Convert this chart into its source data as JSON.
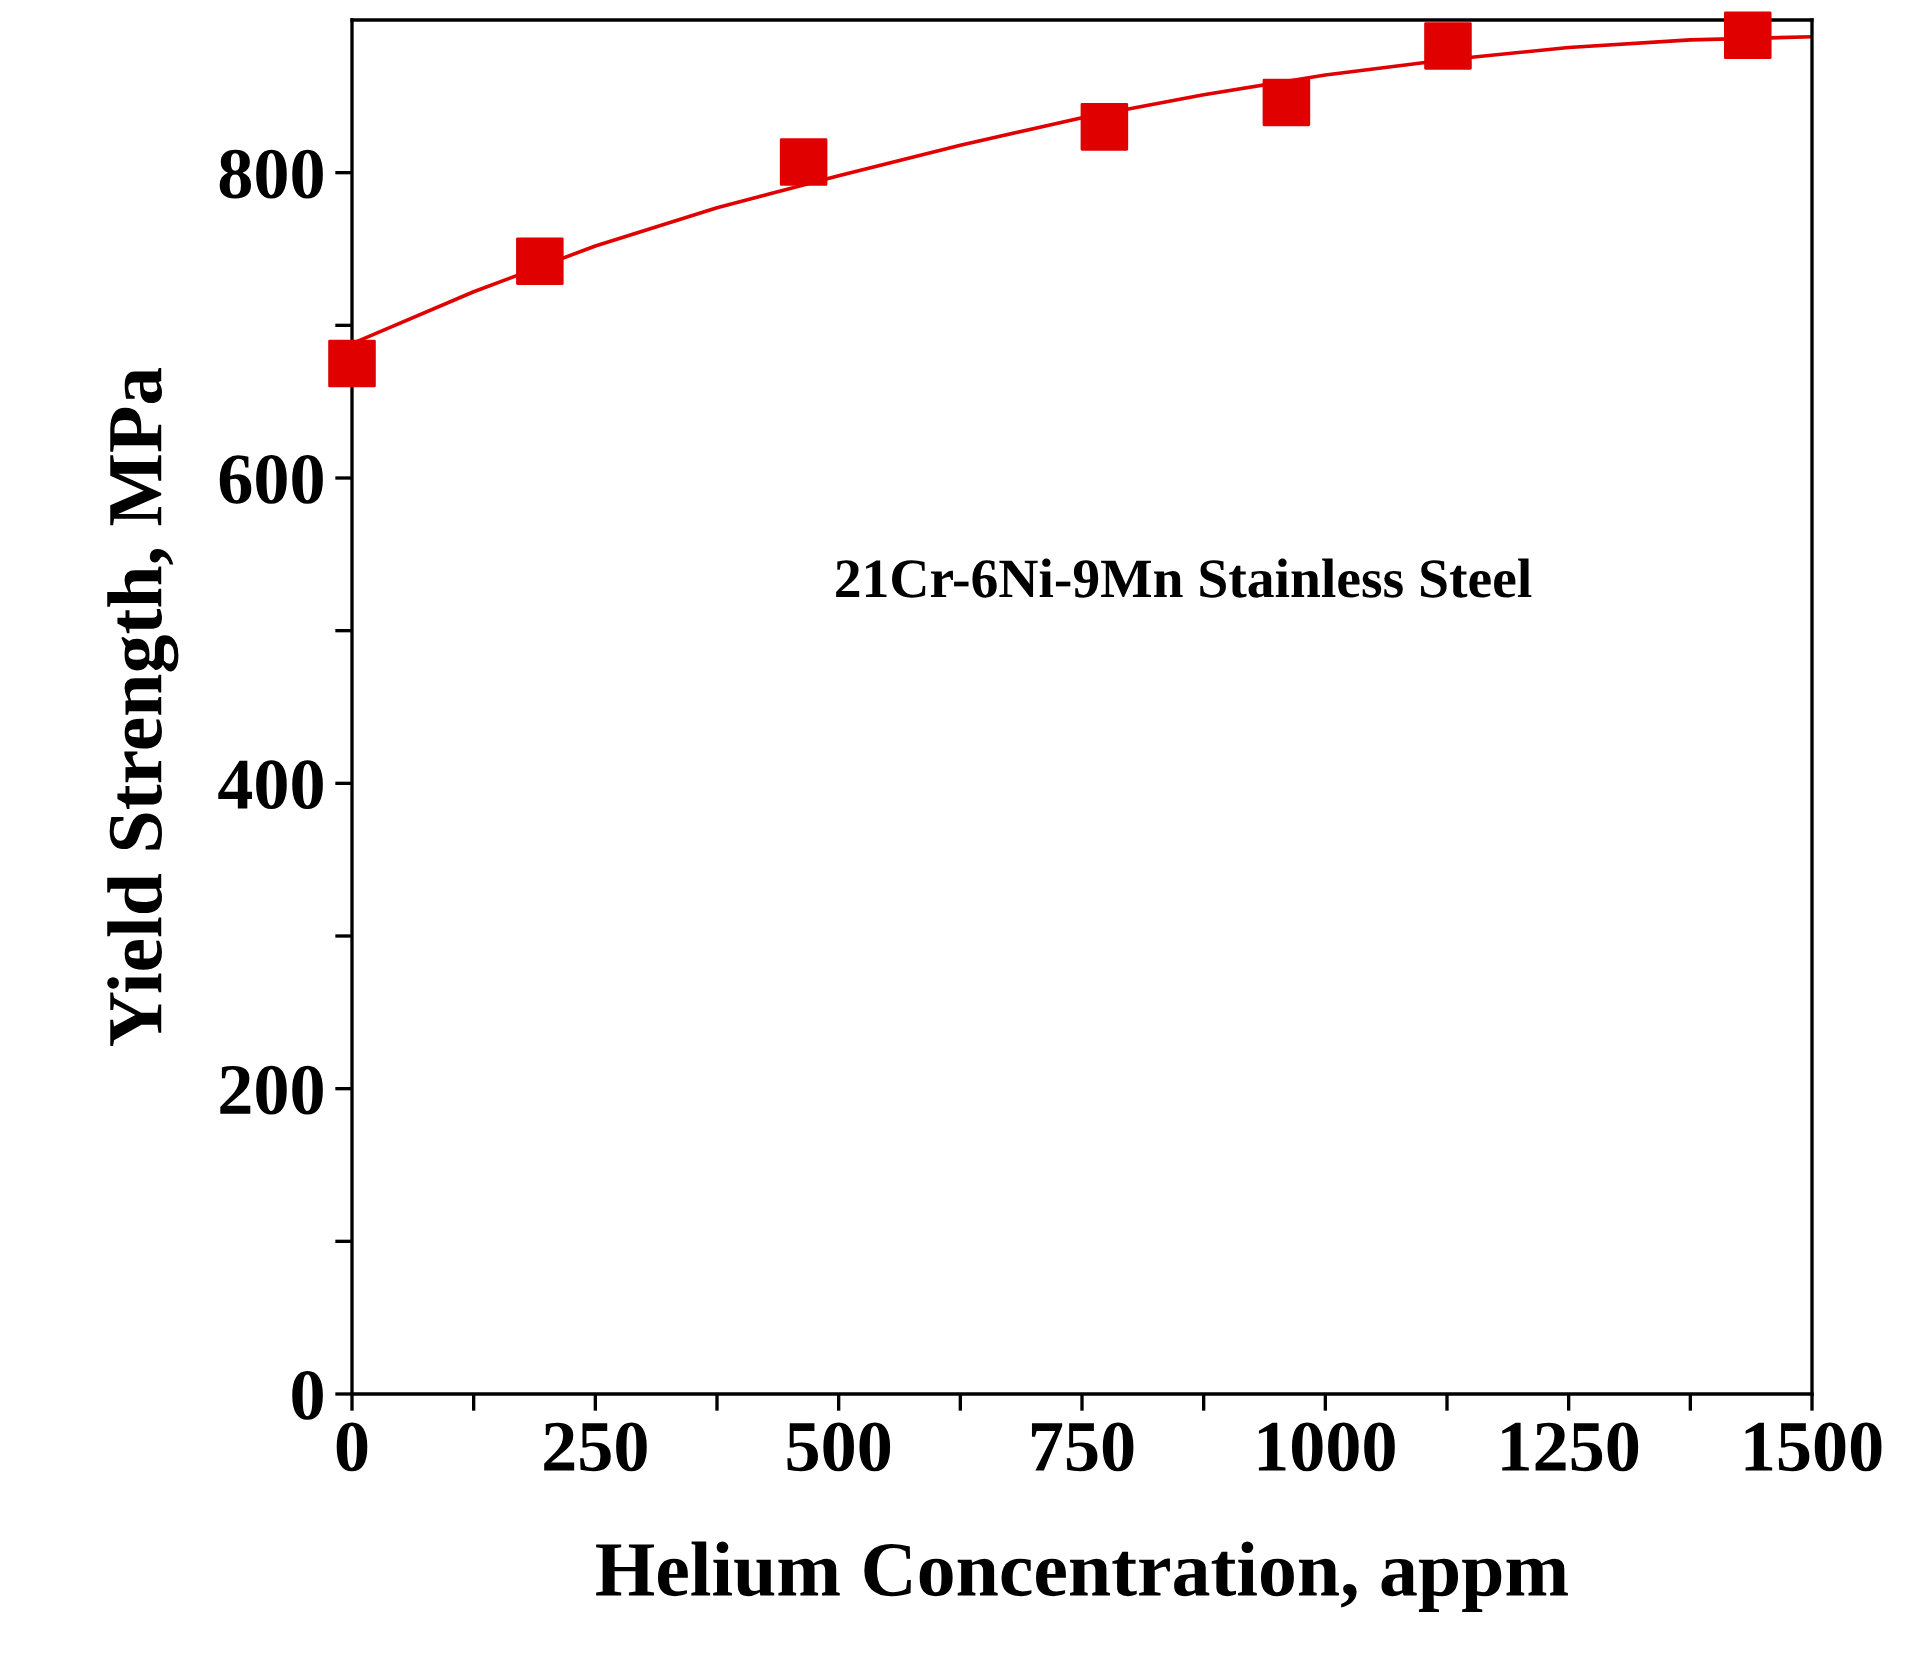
{
  "chart_data": {
    "type": "scatter",
    "xlabel": "Helium Concentration, appm",
    "ylabel": "Yield Strength, MPa",
    "annotations": [
      "21Cr-6Ni-9Mn Stainless Steel"
    ],
    "series": [
      {
        "color": "#e00000",
        "marker": "square",
        "x": [
          0,
          193,
          464,
          773,
          960,
          1126,
          1434
        ],
        "values": [
          675,
          742,
          807,
          830,
          846,
          883,
          890
        ]
      },
      {
        "type": "line",
        "color": "#e00000",
        "marker": "none",
        "line_style": "solid",
        "x": [
          0,
          125,
          250,
          375,
          500,
          625,
          750,
          875,
          1000,
          1125,
          1250,
          1375,
          1500
        ],
        "values": [
          688,
          722,
          752,
          777,
          798,
          818,
          836,
          851,
          864,
          874,
          882,
          887,
          889
        ]
      }
    ],
    "xlim": [
      0,
      1500
    ],
    "ylim": [
      0,
      900
    ],
    "xticks": [
      0,
      {
        "value": 125,
        "label": null
      },
      250,
      {
        "value": 375,
        "label": null
      },
      500,
      {
        "value": 625,
        "label": null
      },
      750,
      {
        "value": 875,
        "label": null
      },
      1000,
      {
        "value": 1125,
        "label": null
      },
      1250,
      {
        "value": 1375,
        "label": null
      },
      1500
    ],
    "yticks": [
      0,
      {
        "value": 100,
        "label": null
      },
      200,
      {
        "value": 300,
        "label": null
      },
      400,
      {
        "value": 500,
        "label": null
      },
      600,
      {
        "value": 700,
        "label": null
      },
      800
    ],
    "grid": false,
    "legend": false
  }
}
